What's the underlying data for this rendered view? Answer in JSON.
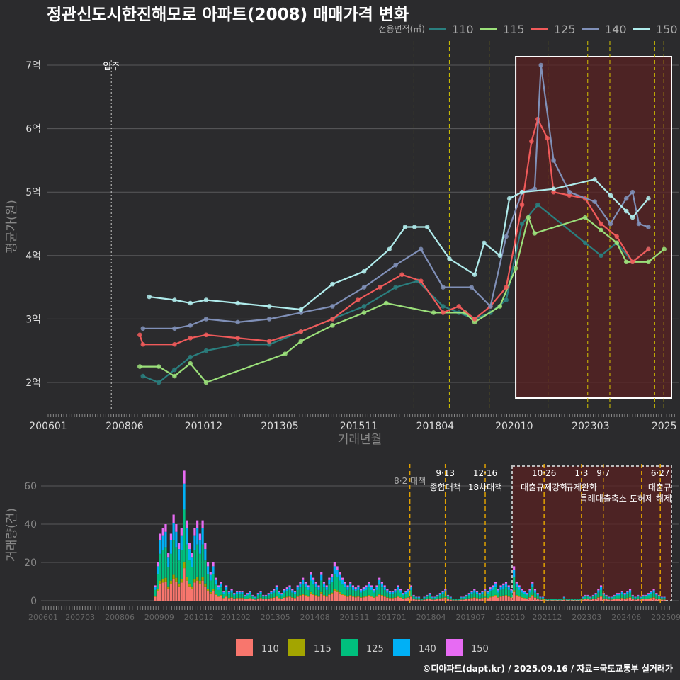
{
  "chart_data": [
    {
      "type": "line",
      "title": "정관신도시한진해모로 아파트(2008) 매매가격 변화",
      "xlabel": "거래년월",
      "ylabel": "평균가(원)",
      "legend_title": "전용면적(㎡)",
      "legend_placement": "top-right",
      "ylim": [
        1.55,
        7.4
      ],
      "xlim": [
        2006.0,
        2025.75
      ],
      "y_ticks": [
        {
          "v": 2,
          "label": "2억"
        },
        {
          "v": 3,
          "label": "3억"
        },
        {
          "v": 4,
          "label": "4억"
        },
        {
          "v": 5,
          "label": "5억"
        },
        {
          "v": 6,
          "label": "6억"
        },
        {
          "v": 7,
          "label": "7억"
        }
      ],
      "x_ticks": [
        {
          "v": 2006.0,
          "label": "200601"
        },
        {
          "v": 2008.42,
          "label": "200806"
        },
        {
          "v": 2010.92,
          "label": "201012"
        },
        {
          "v": 2013.33,
          "label": "201305"
        },
        {
          "v": 2015.83,
          "label": "201511"
        },
        {
          "v": 2018.25,
          "label": "201804"
        },
        {
          "v": 2020.75,
          "label": "202010"
        },
        {
          "v": 2023.17,
          "label": "202303"
        },
        {
          "v": 2025.5,
          "label": "2025"
        }
      ],
      "move_in": {
        "x": 2008.0,
        "label": "입주"
      },
      "highlight_range": [
        2020.8,
        2025.75
      ],
      "policy_lines": [
        2017.58,
        2018.7,
        2019.96,
        2021.82,
        2023.08,
        2023.78,
        2025.2,
        2025.49
      ],
      "series": [
        {
          "name": "110",
          "color": "#2a7f7f",
          "points": [
            [
              2009.0,
              2.1
            ],
            [
              2009.5,
              2.0
            ],
            [
              2010.0,
              2.2
            ],
            [
              2010.5,
              2.4
            ],
            [
              2011.0,
              2.5
            ],
            [
              2012.0,
              2.6
            ],
            [
              2013.0,
              2.6
            ],
            [
              2014.0,
              2.8
            ],
            [
              2015.0,
              3.0
            ],
            [
              2016.0,
              3.2
            ],
            [
              2017.0,
              3.5
            ],
            [
              2017.7,
              3.6
            ],
            [
              2018.5,
              3.2
            ],
            [
              2019.0,
              3.1
            ],
            [
              2019.5,
              3.0
            ],
            [
              2020.0,
              3.1
            ],
            [
              2020.5,
              3.3
            ],
            [
              2021.0,
              4.5
            ],
            [
              2021.5,
              4.8
            ],
            [
              2023.0,
              4.2
            ],
            [
              2023.5,
              4.0
            ],
            [
              2024.0,
              4.2
            ],
            [
              2024.5,
              3.9
            ],
            [
              2025.0,
              4.1
            ]
          ]
        },
        {
          "name": "115",
          "color": "#9be07a",
          "points": [
            [
              2008.9,
              2.25
            ],
            [
              2009.5,
              2.25
            ],
            [
              2010.0,
              2.1
            ],
            [
              2010.5,
              2.3
            ],
            [
              2011.0,
              2.0
            ],
            [
              2013.5,
              2.45
            ],
            [
              2014.0,
              2.65
            ],
            [
              2015.0,
              2.9
            ],
            [
              2016.0,
              3.1
            ],
            [
              2016.7,
              3.25
            ],
            [
              2018.2,
              3.1
            ],
            [
              2019.2,
              3.1
            ],
            [
              2019.5,
              2.95
            ],
            [
              2020.3,
              3.2
            ],
            [
              2020.8,
              3.8
            ],
            [
              2021.2,
              4.6
            ],
            [
              2021.4,
              4.35
            ],
            [
              2023.0,
              4.6
            ],
            [
              2023.5,
              4.4
            ],
            [
              2024.0,
              4.2
            ],
            [
              2024.3,
              3.9
            ],
            [
              2025.0,
              3.9
            ],
            [
              2025.5,
              4.1
            ]
          ]
        },
        {
          "name": "125",
          "color": "#f05a5a",
          "points": [
            [
              2008.9,
              2.75
            ],
            [
              2009.0,
              2.6
            ],
            [
              2010.0,
              2.6
            ],
            [
              2010.5,
              2.7
            ],
            [
              2011.0,
              2.75
            ],
            [
              2012.0,
              2.7
            ],
            [
              2013.0,
              2.65
            ],
            [
              2014.0,
              2.8
            ],
            [
              2015.0,
              3.0
            ],
            [
              2015.8,
              3.3
            ],
            [
              2016.5,
              3.5
            ],
            [
              2017.2,
              3.7
            ],
            [
              2017.8,
              3.6
            ],
            [
              2018.5,
              3.1
            ],
            [
              2019.0,
              3.2
            ],
            [
              2019.5,
              3.0
            ],
            [
              2020.0,
              3.2
            ],
            [
              2020.5,
              3.5
            ],
            [
              2021.0,
              4.8
            ],
            [
              2021.3,
              5.8
            ],
            [
              2021.5,
              6.15
            ],
            [
              2021.8,
              5.85
            ],
            [
              2022.0,
              5.0
            ],
            [
              2022.5,
              4.95
            ],
            [
              2023.0,
              4.9
            ],
            [
              2023.5,
              4.5
            ],
            [
              2024.0,
              4.3
            ],
            [
              2024.5,
              3.9
            ],
            [
              2025.0,
              4.1
            ]
          ]
        },
        {
          "name": "140",
          "color": "#8090b8",
          "points": [
            [
              2009.0,
              2.85
            ],
            [
              2010.0,
              2.85
            ],
            [
              2010.5,
              2.9
            ],
            [
              2011.0,
              3.0
            ],
            [
              2012.0,
              2.95
            ],
            [
              2013.0,
              3.0
            ],
            [
              2014.0,
              3.1
            ],
            [
              2015.0,
              3.2
            ],
            [
              2016.0,
              3.5
            ],
            [
              2017.0,
              3.85
            ],
            [
              2017.8,
              4.1
            ],
            [
              2018.5,
              3.5
            ],
            [
              2019.4,
              3.5
            ],
            [
              2020.0,
              3.2
            ],
            [
              2020.5,
              4.3
            ],
            [
              2021.0,
              5.0
            ],
            [
              2021.4,
              5.05
            ],
            [
              2021.6,
              7.0
            ],
            [
              2022.0,
              5.5
            ],
            [
              2022.5,
              5.0
            ],
            [
              2023.3,
              4.85
            ],
            [
              2023.8,
              4.5
            ],
            [
              2024.3,
              4.9
            ],
            [
              2024.5,
              5.0
            ],
            [
              2024.7,
              4.5
            ],
            [
              2025.0,
              4.45
            ]
          ]
        },
        {
          "name": "150",
          "color": "#b0ecec",
          "points": [
            [
              2009.2,
              3.35
            ],
            [
              2010.0,
              3.3
            ],
            [
              2010.5,
              3.25
            ],
            [
              2011.0,
              3.3
            ],
            [
              2012.0,
              3.25
            ],
            [
              2013.0,
              3.2
            ],
            [
              2014.0,
              3.15
            ],
            [
              2015.0,
              3.55
            ],
            [
              2016.0,
              3.75
            ],
            [
              2016.8,
              4.1
            ],
            [
              2017.3,
              4.45
            ],
            [
              2017.6,
              4.45
            ],
            [
              2018.0,
              4.45
            ],
            [
              2018.7,
              3.95
            ],
            [
              2019.5,
              3.7
            ],
            [
              2019.8,
              4.2
            ],
            [
              2020.3,
              4.0
            ],
            [
              2020.6,
              4.9
            ],
            [
              2021.0,
              5.0
            ],
            [
              2022.0,
              5.05
            ],
            [
              2023.3,
              5.2
            ],
            [
              2023.8,
              4.95
            ],
            [
              2024.3,
              4.7
            ],
            [
              2024.5,
              4.6
            ],
            [
              2025.0,
              4.9
            ]
          ]
        }
      ]
    },
    {
      "type": "bar",
      "ylabel": "거래량(건)",
      "ylim": [
        0,
        70
      ],
      "y_ticks": [
        0,
        20,
        40,
        60
      ],
      "x_ticks": [
        "200601",
        "200703",
        "200806",
        "200909",
        "201012",
        "201202",
        "201305",
        "201408",
        "201511",
        "201701",
        "201804",
        "201907",
        "202010",
        "202112",
        "202303",
        "202406",
        "202509"
      ],
      "start_month": "200907",
      "monthly_totals": [
        8,
        20,
        35,
        38,
        40,
        25,
        35,
        45,
        40,
        30,
        38,
        68,
        42,
        30,
        25,
        38,
        42,
        35,
        42,
        30,
        20,
        15,
        20,
        12,
        8,
        10,
        5,
        8,
        5,
        6,
        4,
        5,
        5,
        5,
        3,
        4,
        5,
        3,
        2,
        4,
        5,
        3,
        3,
        4,
        5,
        6,
        8,
        5,
        4,
        6,
        7,
        8,
        6,
        5,
        8,
        10,
        12,
        10,
        8,
        15,
        12,
        10,
        8,
        15,
        10,
        8,
        12,
        14,
        20,
        18,
        15,
        12,
        10,
        8,
        10,
        8,
        7,
        8,
        6,
        7,
        8,
        10,
        8,
        6,
        8,
        12,
        10,
        8,
        6,
        5,
        5,
        6,
        8,
        6,
        4,
        5,
        6,
        8,
        3,
        2,
        2,
        1,
        2,
        3,
        4,
        2,
        2,
        3,
        4,
        5,
        6,
        3,
        2,
        1,
        1,
        1,
        2,
        2,
        3,
        4,
        5,
        6,
        5,
        4,
        5,
        6,
        5,
        7,
        8,
        10,
        6,
        8,
        9,
        10,
        8,
        6,
        18,
        10,
        8,
        6,
        5,
        4,
        6,
        10,
        6,
        4,
        2,
        2,
        1,
        1,
        1,
        1,
        1,
        1,
        1,
        2,
        1,
        1,
        1,
        1,
        1,
        1,
        2,
        3,
        3,
        2,
        3,
        4,
        6,
        8,
        4,
        3,
        2,
        2,
        3,
        4,
        4,
        5,
        4,
        5,
        6,
        3,
        2,
        3,
        2,
        3,
        3,
        4,
        5,
        6,
        4,
        3,
        2,
        2
      ],
      "mix": {
        "110": 0.25,
        "115": 0.05,
        "125": 0.4,
        "140": 0.2,
        "150": 0.1
      },
      "legend": [
        {
          "name": "110",
          "color": "#f8766d"
        },
        {
          "name": "115",
          "color": "#a3a500"
        },
        {
          "name": "125",
          "color": "#00bf7d"
        },
        {
          "name": "140",
          "color": "#00b0f6"
        },
        {
          "name": "150",
          "color": "#e76bf3"
        }
      ],
      "annotations": [
        {
          "x": 2017.58,
          "date": "",
          "label": "8·2 대책"
        },
        {
          "x": 2018.7,
          "date": "9·13",
          "label": "종합대책"
        },
        {
          "x": 2019.96,
          "date": "12·16",
          "label": "18차대책"
        },
        {
          "x": 2021.82,
          "date": "10·26",
          "label": "대출규제강화"
        },
        {
          "x": 2023.0,
          "date": "1·3",
          "label": "규제완화"
        },
        {
          "x": 2023.69,
          "date": "9·7",
          "label": "특례대출축소"
        },
        {
          "x": 2024.9,
          "date": "",
          "label": "토허제 해제"
        },
        {
          "x": 2025.49,
          "date": "6·27",
          "label": "대출규"
        }
      ]
    }
  ],
  "caption": "©디아파트(dapt.kr) / 2025.09.16 / 자료=국토교통부 실거래가"
}
